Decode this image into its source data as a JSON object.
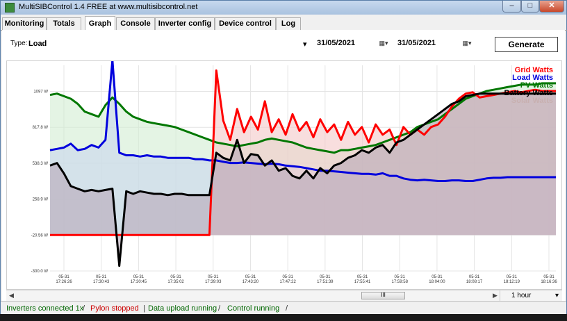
{
  "window": {
    "title": "MultiSIBControl 1.4 FREE at www.multisibcontrol.net"
  },
  "tabs": [
    {
      "label": "Monitoring"
    },
    {
      "label": "Totals"
    },
    {
      "label": "Graph",
      "active": true
    },
    {
      "label": "Console"
    },
    {
      "label": "Inverter config"
    },
    {
      "label": "Device control"
    },
    {
      "label": "Log"
    }
  ],
  "controls": {
    "type_label": "Type:",
    "type_value": "Load",
    "date_from": "31/05/2021",
    "date_to": "31/05/2021",
    "generate_label": "Generate"
  },
  "chart_data": {
    "type": "area",
    "legend_position": "top-right",
    "grid": true,
    "yticks": [
      "-300.0 W",
      "-20.56 W",
      "258.9 W",
      "538.3 W",
      "817.8 W",
      "1097 W"
    ],
    "ylim": [
      -300,
      1300
    ],
    "xticks": [
      "05-31\n17:26:26",
      "05-31\n17:30:43",
      "05-31\n17:30:45",
      "05-31\n17:35:02",
      "05-31\n17:39:03",
      "05-31\n17:43:20",
      "05-31\n17:47:22",
      "05-31\n17:51:39",
      "05-31\n17:55:41",
      "05-31\n17:59:58",
      "05-31\n18:04:00",
      "05-31\n18:08:17",
      "05-31\n18:12:19",
      "05-31\n18:16:36"
    ],
    "series": [
      {
        "name": "Grid Watts",
        "color": "#ff0000",
        "fill": "#f4c8c8",
        "values": [
          -20,
          -20,
          -20,
          -20,
          -20,
          -20,
          -20,
          -20,
          -20,
          -20,
          -20,
          -20,
          -20,
          -20,
          -20,
          -20,
          -20,
          -20,
          -20,
          -20,
          -20,
          -20,
          -20,
          -20,
          1260,
          870,
          720,
          960,
          780,
          900,
          800,
          1020,
          780,
          880,
          760,
          920,
          790,
          860,
          740,
          880,
          780,
          840,
          720,
          860,
          760,
          820,
          700,
          840,
          760,
          800,
          680,
          820,
          760,
          800,
          760,
          820,
          840,
          900,
          980,
          1040,
          1080,
          1090,
          1050,
          1060,
          1070,
          1080,
          1090,
          1100,
          1090,
          1100,
          1110,
          1100,
          1100,
          1100
        ]
      },
      {
        "name": "Load Watts",
        "color": "#0000dd",
        "fill": "#c9d6ee",
        "values": [
          640,
          650,
          660,
          690,
          640,
          650,
          680,
          660,
          720,
          1340,
          620,
          600,
          600,
          590,
          600,
          590,
          590,
          580,
          580,
          580,
          580,
          570,
          570,
          560,
          560,
          550,
          540,
          540,
          545,
          540,
          535,
          530,
          535,
          530,
          520,
          515,
          510,
          500,
          490,
          480,
          480,
          475,
          470,
          465,
          460,
          455,
          455,
          450,
          460,
          440,
          440,
          420,
          410,
          405,
          410,
          405,
          400,
          400,
          405,
          405,
          400,
          400,
          410,
          420,
          425,
          425,
          430,
          430,
          430,
          430,
          430,
          430,
          430,
          430
        ]
      },
      {
        "name": "PV Watts",
        "color": "#007700",
        "fill": "#d2ecd2",
        "values": [
          1070,
          1080,
          1060,
          1040,
          1000,
          940,
          920,
          900,
          990,
          1050,
          1000,
          940,
          900,
          880,
          860,
          850,
          840,
          830,
          820,
          800,
          780,
          760,
          740,
          720,
          700,
          690,
          680,
          670,
          680,
          690,
          700,
          720,
          730,
          720,
          710,
          700,
          680,
          660,
          650,
          640,
          630,
          620,
          640,
          640,
          650,
          660,
          670,
          680,
          700,
          720,
          740,
          760,
          780,
          820,
          840,
          860,
          880,
          920,
          960,
          1000,
          1040,
          1060,
          1080,
          1100,
          1110,
          1120,
          1130,
          1140,
          1150,
          1150,
          1150,
          1160,
          1160,
          1160
        ]
      },
      {
        "name": "Battery Watts",
        "color": "#000000",
        "fill": "#b8a9b8",
        "values": [
          520,
          540,
          460,
          360,
          340,
          320,
          330,
          320,
          330,
          340,
          -260,
          320,
          300,
          320,
          310,
          300,
          300,
          290,
          300,
          300,
          290,
          290,
          290,
          290,
          620,
          580,
          560,
          720,
          540,
          610,
          600,
          520,
          560,
          480,
          500,
          440,
          420,
          480,
          420,
          500,
          460,
          520,
          540,
          580,
          600,
          640,
          620,
          660,
          680,
          620,
          700,
          720,
          760,
          800,
          840,
          880,
          920,
          960,
          1000,
          1020,
          1060,
          1070,
          1080,
          1080,
          1080,
          1080,
          1080,
          1080,
          1080,
          1080,
          1080,
          1080,
          1080,
          1080
        ]
      },
      {
        "name": "Solar Watts",
        "color": "#c8b0b0",
        "fill": "none",
        "values": []
      }
    ]
  },
  "scrollbar": {
    "thumb_label": "III",
    "interval": "1 hour"
  },
  "status": [
    {
      "text": "Inverters connected 1x",
      "color": "#006600"
    },
    {
      "text": "Pylon stopped",
      "color": "#cc0000"
    },
    {
      "text": "Data upload running",
      "color": "#006600"
    },
    {
      "text": "Control running",
      "color": "#006600"
    }
  ]
}
